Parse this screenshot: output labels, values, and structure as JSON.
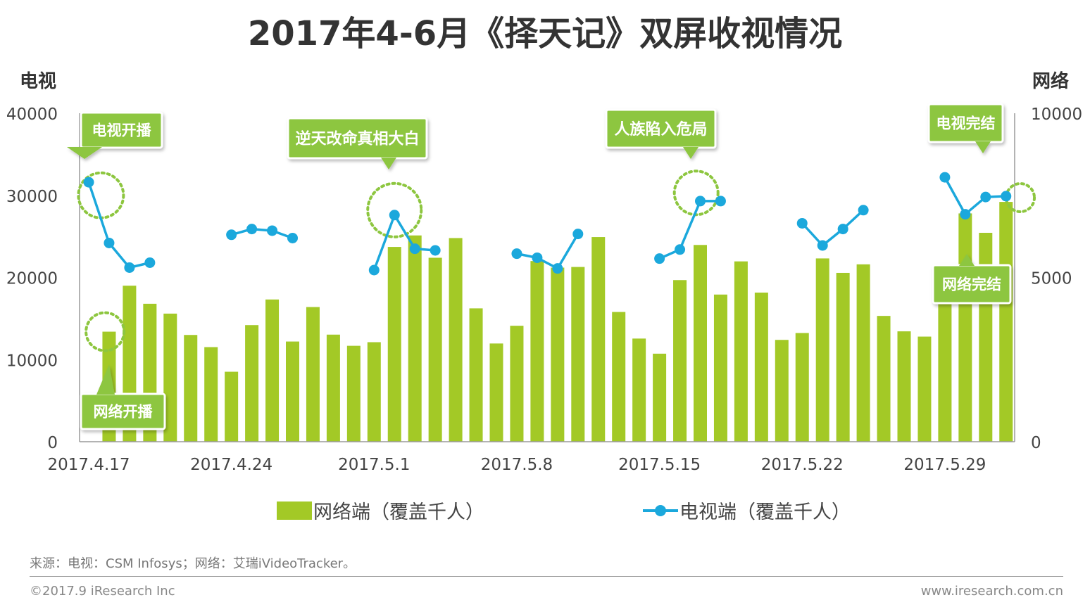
{
  "chart_data": {
    "type": "bar+line",
    "title": "2017年4-6月《择天记》双屏收视情况",
    "left_axis_title": "电视",
    "right_axis_title": "网络",
    "left_ylim": [
      0,
      40000
    ],
    "right_ylim": [
      0,
      10000
    ],
    "left_ticks": [
      "40000",
      "30000",
      "20000",
      "10000",
      "0"
    ],
    "right_ticks": [
      "10000",
      "5000",
      "0"
    ],
    "x_tick_labels": [
      {
        "day": 0,
        "label": "2017.4.17"
      },
      {
        "day": 7,
        "label": "2017.4.24"
      },
      {
        "day": 14,
        "label": "2017.5.1"
      },
      {
        "day": 21,
        "label": "2017.5.8"
      },
      {
        "day": 28,
        "label": "2017.5.15"
      },
      {
        "day": 35,
        "label": "2017.5.22"
      },
      {
        "day": 42,
        "label": "2017.5.29"
      }
    ],
    "series": [
      {
        "name": "网络端（覆盖千人）",
        "kind": "bar",
        "axis": "right",
        "color": "#a3c926",
        "points": [
          [
            1,
            3350
          ],
          [
            2,
            4750
          ],
          [
            3,
            4200
          ],
          [
            4,
            3900
          ],
          [
            5,
            3250
          ],
          [
            6,
            2880
          ],
          [
            7,
            2130
          ],
          [
            8,
            3550
          ],
          [
            9,
            4330
          ],
          [
            10,
            3050
          ],
          [
            11,
            4100
          ],
          [
            12,
            3260
          ],
          [
            13,
            2920
          ],
          [
            14,
            3030
          ],
          [
            15,
            5930
          ],
          [
            16,
            6280
          ],
          [
            17,
            5600
          ],
          [
            18,
            6200
          ],
          [
            19,
            4060
          ],
          [
            20,
            2990
          ],
          [
            21,
            3530
          ],
          [
            22,
            5500
          ],
          [
            23,
            5300
          ],
          [
            24,
            5320
          ],
          [
            25,
            6230
          ],
          [
            26,
            3950
          ],
          [
            27,
            3140
          ],
          [
            28,
            2680
          ],
          [
            29,
            4920
          ],
          [
            30,
            5990
          ],
          [
            31,
            4480
          ],
          [
            32,
            5490
          ],
          [
            33,
            4540
          ],
          [
            34,
            3100
          ],
          [
            35,
            3310
          ],
          [
            36,
            5580
          ],
          [
            37,
            5140
          ],
          [
            38,
            5400
          ],
          [
            39,
            3830
          ],
          [
            40,
            3360
          ],
          [
            41,
            3200
          ],
          [
            42,
            4750
          ],
          [
            43,
            6950
          ],
          [
            44,
            6360
          ],
          [
            45,
            7300
          ]
        ]
      },
      {
        "name": "电视端（覆盖千人）",
        "kind": "line",
        "axis": "left",
        "color": "#1ba8dc",
        "segments": [
          [
            [
              0,
              31600
            ],
            [
              1,
              24200
            ],
            [
              2,
              21200
            ],
            [
              3,
              21800
            ]
          ],
          [
            [
              7,
              25200
            ],
            [
              8,
              25900
            ],
            [
              9,
              25700
            ],
            [
              10,
              24800
            ]
          ],
          [
            [
              14,
              20900
            ],
            [
              15,
              27600
            ],
            [
              16,
              23500
            ],
            [
              17,
              23300
            ]
          ],
          [
            [
              21,
              22900
            ],
            [
              22,
              22400
            ],
            [
              23,
              21100
            ],
            [
              24,
              25300
            ]
          ],
          [
            [
              28,
              22300
            ],
            [
              29,
              23400
            ],
            [
              30,
              29300
            ],
            [
              31,
              29300
            ]
          ],
          [
            [
              35,
              26600
            ],
            [
              36,
              23900
            ],
            [
              37,
              25900
            ],
            [
              38,
              28200
            ]
          ],
          [
            [
              42,
              32200
            ],
            [
              43,
              27700
            ],
            [
              44,
              29800
            ],
            [
              45,
              29900
            ]
          ]
        ]
      }
    ],
    "annotations": [
      {
        "id": "tv-start",
        "text": "电视开播"
      },
      {
        "id": "web-start",
        "text": "网络开播"
      },
      {
        "id": "truth",
        "text": "逆天改命真相大白"
      },
      {
        "id": "human",
        "text": "人族陷入危局"
      },
      {
        "id": "tv-end",
        "text": "电视完结"
      },
      {
        "id": "web-end",
        "text": "网络完结"
      }
    ]
  },
  "legend": {
    "bar_label": "网络端（覆盖千人）",
    "line_label": "电视端（覆盖千人）"
  },
  "footer": {
    "source": "来源：电视：CSM Infosys；网络：艾瑞iVideoTracker。",
    "copyright": "©2017.9 iResearch Inc",
    "website": "www.iresearch.com.cn"
  },
  "colors": {
    "bar": "#a3c926",
    "line": "#1ba8dc",
    "callout": "#8dc63f",
    "ring": "#8dc63f"
  }
}
